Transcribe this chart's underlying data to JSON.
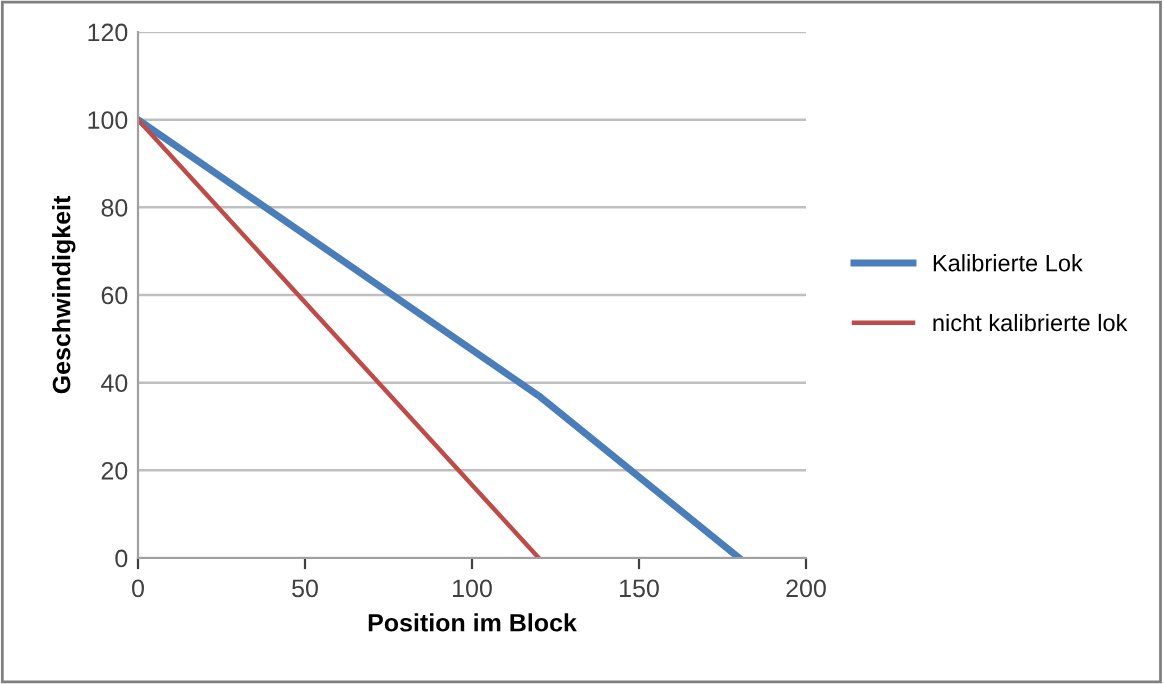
{
  "chart_data": {
    "type": "line",
    "xlabel": "Position im Block",
    "ylabel": "Geschwindigkeit",
    "xlim": [
      0,
      200
    ],
    "xticks": [
      0,
      50,
      100,
      150,
      200
    ],
    "ylim": [
      0,
      120
    ],
    "yticks": [
      0,
      20,
      40,
      60,
      80,
      100,
      120
    ],
    "grid": "y",
    "legend": "right",
    "marker": "none",
    "line_style": "solid",
    "series": [
      {
        "name": "Kalibrierte Lok",
        "color": "#4a7ebb",
        "x": [
          0,
          120,
          180
        ],
        "values": [
          100,
          37,
          0
        ]
      },
      {
        "name": "nicht kalibrierte lok",
        "color": "#be4b48",
        "x": [
          0,
          120
        ],
        "values": [
          100,
          0
        ]
      }
    ]
  }
}
